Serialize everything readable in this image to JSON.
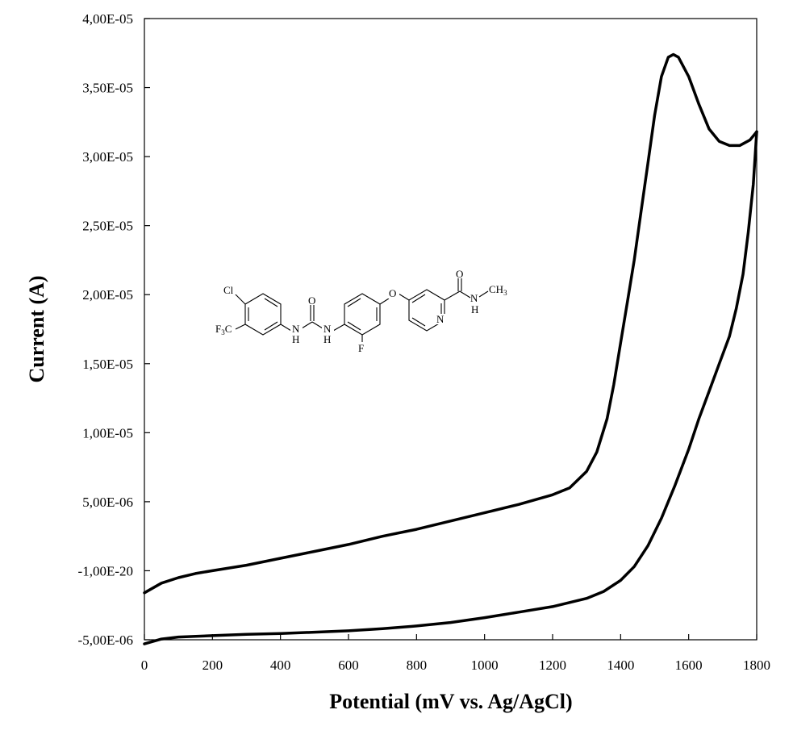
{
  "chart_data": {
    "type": "line",
    "title": "",
    "xlabel": "Potential (mV vs. Ag/AgCl)",
    "ylabel": "Current (A)",
    "xlim": [
      0,
      1800
    ],
    "ylim": [
      -5e-06,
      4e-05
    ],
    "x_ticks": [
      {
        "value": 0,
        "label": "0"
      },
      {
        "value": 200,
        "label": "200"
      },
      {
        "value": 400,
        "label": "400"
      },
      {
        "value": 600,
        "label": "600"
      },
      {
        "value": 800,
        "label": "800"
      },
      {
        "value": 1000,
        "label": "1000"
      },
      {
        "value": 1200,
        "label": "1200"
      },
      {
        "value": 1400,
        "label": "1400"
      },
      {
        "value": 1600,
        "label": "1600"
      },
      {
        "value": 1800,
        "label": "1800"
      }
    ],
    "y_ticks": [
      {
        "value": -5e-06,
        "label": "-5,00E-06"
      },
      {
        "value": 0,
        "label": "-1,00E-20"
      },
      {
        "value": 5e-06,
        "label": "5,00E-06"
      },
      {
        "value": 1e-05,
        "label": "1,00E-05"
      },
      {
        "value": 1.5e-05,
        "label": "1,50E-05"
      },
      {
        "value": 2e-05,
        "label": "2,00E-05"
      },
      {
        "value": 2.5e-05,
        "label": "2,50E-05"
      },
      {
        "value": 3e-05,
        "label": "3,00E-05"
      },
      {
        "value": 3.5e-05,
        "label": "3,50E-05"
      },
      {
        "value": 4e-05,
        "label": "4,00E-05"
      }
    ],
    "grid": false,
    "legend": "none",
    "line_color": "#000000",
    "series": [
      {
        "points": [
          [
            0,
            -1.6e-06
          ],
          [
            50,
            -9e-07
          ],
          [
            100,
            -5e-07
          ],
          [
            150,
            -2e-07
          ],
          [
            200,
            0
          ],
          [
            300,
            4e-07
          ],
          [
            400,
            9e-07
          ],
          [
            500,
            1.4e-06
          ],
          [
            600,
            1.9e-06
          ],
          [
            700,
            2.5e-06
          ],
          [
            800,
            3e-06
          ],
          [
            900,
            3.6e-06
          ],
          [
            1000,
            4.2e-06
          ],
          [
            1100,
            4.8e-06
          ],
          [
            1200,
            5.5e-06
          ],
          [
            1250,
            6e-06
          ],
          [
            1300,
            7.2e-06
          ],
          [
            1330,
            8.6e-06
          ],
          [
            1360,
            1.1e-05
          ],
          [
            1380,
            1.35e-05
          ],
          [
            1400,
            1.65e-05
          ],
          [
            1420,
            1.95e-05
          ],
          [
            1440,
            2.25e-05
          ],
          [
            1460,
            2.6e-05
          ],
          [
            1480,
            2.95e-05
          ],
          [
            1500,
            3.3e-05
          ],
          [
            1520,
            3.58e-05
          ],
          [
            1540,
            3.72e-05
          ],
          [
            1555,
            3.74e-05
          ],
          [
            1570,
            3.72e-05
          ],
          [
            1600,
            3.58e-05
          ],
          [
            1630,
            3.38e-05
          ],
          [
            1660,
            3.2e-05
          ],
          [
            1690,
            3.11e-05
          ],
          [
            1720,
            3.08e-05
          ],
          [
            1750,
            3.08e-05
          ],
          [
            1780,
            3.12e-05
          ],
          [
            1800,
            3.18e-05
          ]
        ]
      },
      {
        "points": [
          [
            1800,
            3.18e-05
          ],
          [
            1790,
            2.8e-05
          ],
          [
            1775,
            2.45e-05
          ],
          [
            1760,
            2.15e-05
          ],
          [
            1740,
            1.9e-05
          ],
          [
            1720,
            1.7e-05
          ],
          [
            1690,
            1.5e-05
          ],
          [
            1660,
            1.3e-05
          ],
          [
            1630,
            1.1e-05
          ],
          [
            1600,
            8.8e-06
          ],
          [
            1560,
            6.2e-06
          ],
          [
            1520,
            3.8e-06
          ],
          [
            1480,
            1.8e-06
          ],
          [
            1440,
            3e-07
          ],
          [
            1400,
            -7e-07
          ],
          [
            1350,
            -1.5e-06
          ],
          [
            1300,
            -2e-06
          ],
          [
            1200,
            -2.6e-06
          ],
          [
            1100,
            -3e-06
          ],
          [
            1000,
            -3.4e-06
          ],
          [
            900,
            -3.75e-06
          ],
          [
            800,
            -4e-06
          ],
          [
            700,
            -4.2e-06
          ],
          [
            600,
            -4.35e-06
          ],
          [
            500,
            -4.45e-06
          ],
          [
            400,
            -4.55e-06
          ],
          [
            300,
            -4.6e-06
          ],
          [
            200,
            -4.7e-06
          ],
          [
            100,
            -4.8e-06
          ],
          [
            50,
            -4.95e-06
          ],
          [
            0,
            -5.3e-06
          ]
        ]
      }
    ]
  },
  "molecule": {
    "labels": {
      "cl": "Cl",
      "f3c": "F",
      "f3c_sub": "3",
      "f3c_c": "C",
      "nh1_n": "N",
      "nh1_h": "H",
      "nh2_n": "N",
      "nh2_h": "H",
      "urea_o": "O",
      "f": "F",
      "ether_o": "O",
      "pyr_n": "N",
      "amide_o": "O",
      "amide_n": "N",
      "amide_h": "H",
      "ch3": "CH",
      "ch3_sub": "3"
    }
  }
}
